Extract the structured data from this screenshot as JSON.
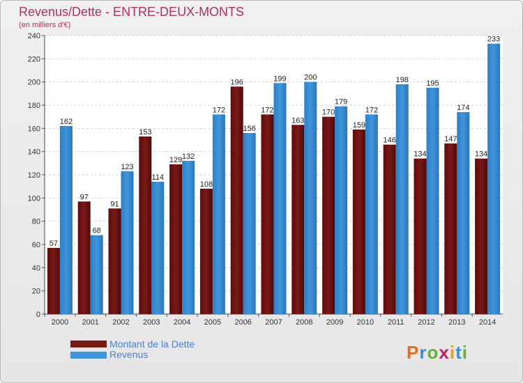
{
  "title": "Revenus/Dette - ENTRE-DEUX-MONTS",
  "subtitle": "(en milliers d'€)",
  "logo": {
    "letters": [
      "P",
      "r",
      "o",
      "x",
      "i",
      "t",
      "i"
    ],
    "colors": [
      "#e07020",
      "#3a8fd0",
      "#60b040",
      "#c02060",
      "#e0a020",
      "#3a8fd0",
      "#60b040"
    ]
  },
  "colors": {
    "dette": "#7a1818",
    "revenus": "#3f95dc",
    "title": "#b03060"
  },
  "chart_data": {
    "type": "bar",
    "categories": [
      "2000",
      "2001",
      "2002",
      "2003",
      "2004",
      "2005",
      "2006",
      "2007",
      "2008",
      "2009",
      "2010",
      "2011",
      "2012",
      "2013",
      "2014"
    ],
    "series": [
      {
        "name": "Montant de la Dette",
        "values": [
          57,
          97,
          91,
          153,
          129,
          108,
          196,
          172,
          163,
          170,
          159,
          146,
          134,
          147,
          134
        ]
      },
      {
        "name": "Revenus",
        "values": [
          162,
          68,
          123,
          114,
          132,
          172,
          156,
          199,
          200,
          179,
          172,
          198,
          195,
          174,
          233
        ]
      }
    ],
    "ylim": [
      0,
      240
    ],
    "yticks": [
      0,
      20,
      40,
      60,
      80,
      100,
      120,
      140,
      160,
      180,
      200,
      220,
      240
    ],
    "grid": true,
    "legend": "bottom-left"
  }
}
